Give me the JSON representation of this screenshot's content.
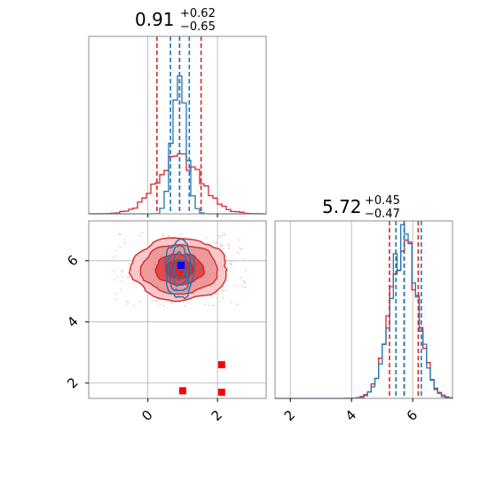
{
  "chart_data": [
    {
      "panel": "top-left marginal histogram",
      "type": "histogram",
      "title": {
        "value": "0.91",
        "plus": "+0.62",
        "minus": "−0.65"
      },
      "xlim": [
        -1.7,
        3.4
      ],
      "grid": true,
      "series": [
        {
          "color": "#d62728",
          "values": [
            0.91
          ],
          "quantiles": [
            0.26,
            1.53
          ],
          "spread": 0.63
        },
        {
          "color": "#1f77b4",
          "values": [
            0.91
          ],
          "quantiles": [
            0.65,
            1.19
          ],
          "spread": 0.2
        }
      ]
    },
    {
      "panel": "bottom-right marginal histogram",
      "type": "histogram",
      "title": {
        "value": "5.72",
        "plus": "+0.45",
        "minus": "−0.47"
      },
      "xlim": [
        1.5,
        7.3
      ],
      "x_ticks": [
        "2",
        "4",
        "6"
      ],
      "grid": true,
      "series": [
        {
          "color": "#d62728",
          "values": [
            5.72
          ],
          "quantiles": [
            5.24,
            6.18
          ]
        },
        {
          "color": "#1f77b4",
          "values": [
            5.72
          ],
          "quantiles": [
            5.45,
            6.28
          ]
        }
      ]
    },
    {
      "panel": "bottom-left 2D contour",
      "type": "scatter",
      "xlim": [
        -1.7,
        3.4
      ],
      "ylim": [
        1.5,
        7.3
      ],
      "x_ticks": [
        "0",
        "2"
      ],
      "y_ticks": [
        "2",
        "4",
        "6"
      ],
      "grid": true,
      "contours": [
        {
          "color": "#d62728",
          "center": [
            0.91,
            5.72
          ],
          "sigma": [
            0.63,
            0.46
          ]
        },
        {
          "color": "#1f77b4",
          "center": [
            0.91,
            5.72
          ],
          "sigma": [
            0.2,
            0.46
          ]
        }
      ],
      "series": [
        {
          "color": "#ff0000",
          "marker": "square",
          "points": [
            [
              2.12,
              2.6
            ],
            [
              1.0,
              1.75
            ],
            [
              2.12,
              1.7
            ]
          ]
        },
        {
          "color": "#0000ff",
          "marker": "square",
          "points": [
            [
              0.95,
              5.85
            ]
          ]
        }
      ]
    }
  ]
}
